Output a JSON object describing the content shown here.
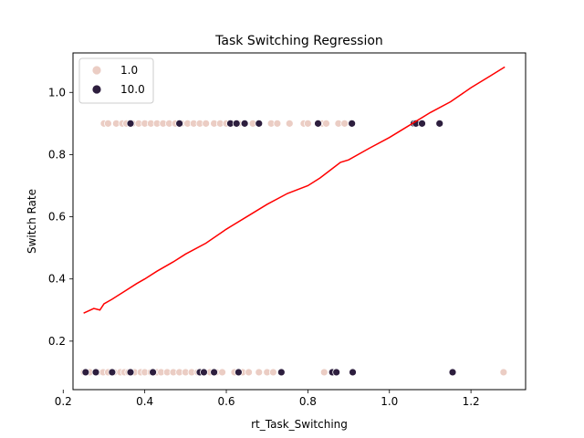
{
  "chart_data": {
    "type": "scatter",
    "title": "Task Switching Regression",
    "xlabel": "rt_Task_Switching",
    "ylabel": "Switch Rate",
    "xlim": [
      0.224,
      1.334
    ],
    "ylim": [
      0.044,
      1.127
    ],
    "xticks": [
      0.2,
      0.4,
      0.6,
      0.8,
      1.0,
      1.2
    ],
    "yticks": [
      0.2,
      0.4,
      0.6,
      0.8,
      1.0
    ],
    "grid": false,
    "legend": {
      "position": "upper-left",
      "title": ""
    },
    "series": [
      {
        "name": "1.0",
        "color": "#ebcdc4",
        "points": [
          [
            0.251,
            0.1
          ],
          [
            0.265,
            0.1
          ],
          [
            0.285,
            0.1
          ],
          [
            0.298,
            0.1
          ],
          [
            0.31,
            0.1
          ],
          [
            0.325,
            0.1
          ],
          [
            0.34,
            0.1
          ],
          [
            0.35,
            0.1
          ],
          [
            0.36,
            0.1
          ],
          [
            0.375,
            0.1
          ],
          [
            0.39,
            0.1
          ],
          [
            0.4,
            0.1
          ],
          [
            0.415,
            0.1
          ],
          [
            0.43,
            0.1
          ],
          [
            0.44,
            0.1
          ],
          [
            0.455,
            0.1
          ],
          [
            0.47,
            0.1
          ],
          [
            0.485,
            0.1
          ],
          [
            0.5,
            0.1
          ],
          [
            0.515,
            0.1
          ],
          [
            0.53,
            0.1
          ],
          [
            0.545,
            0.1
          ],
          [
            0.56,
            0.1
          ],
          [
            0.575,
            0.1
          ],
          [
            0.59,
            0.1
          ],
          [
            0.62,
            0.1
          ],
          [
            0.64,
            0.1
          ],
          [
            0.655,
            0.1
          ],
          [
            0.68,
            0.1
          ],
          [
            0.7,
            0.1
          ],
          [
            0.715,
            0.1
          ],
          [
            0.84,
            0.1
          ],
          [
            0.87,
            0.1
          ],
          [
            1.28,
            0.1
          ],
          [
            0.3,
            0.9
          ],
          [
            0.31,
            0.9
          ],
          [
            0.33,
            0.9
          ],
          [
            0.345,
            0.9
          ],
          [
            0.355,
            0.9
          ],
          [
            0.37,
            0.9
          ],
          [
            0.385,
            0.9
          ],
          [
            0.4,
            0.9
          ],
          [
            0.415,
            0.9
          ],
          [
            0.43,
            0.9
          ],
          [
            0.445,
            0.9
          ],
          [
            0.46,
            0.9
          ],
          [
            0.475,
            0.9
          ],
          [
            0.49,
            0.9
          ],
          [
            0.505,
            0.9
          ],
          [
            0.52,
            0.9
          ],
          [
            0.535,
            0.9
          ],
          [
            0.55,
            0.9
          ],
          [
            0.57,
            0.9
          ],
          [
            0.585,
            0.9
          ],
          [
            0.6,
            0.9
          ],
          [
            0.615,
            0.9
          ],
          [
            0.63,
            0.9
          ],
          [
            0.645,
            0.9
          ],
          [
            0.665,
            0.9
          ],
          [
            0.71,
            0.9
          ],
          [
            0.725,
            0.9
          ],
          [
            0.755,
            0.9
          ],
          [
            0.79,
            0.9
          ],
          [
            0.8,
            0.9
          ],
          [
            0.835,
            0.9
          ],
          [
            0.845,
            0.9
          ],
          [
            0.875,
            0.9
          ],
          [
            0.89,
            0.9
          ],
          [
            1.07,
            0.9
          ]
        ]
      },
      {
        "name": "10.0",
        "color": "#2d1e3e",
        "points": [
          [
            0.255,
            0.1
          ],
          [
            0.28,
            0.1
          ],
          [
            0.32,
            0.1
          ],
          [
            0.365,
            0.1
          ],
          [
            0.42,
            0.1
          ],
          [
            0.535,
            0.1
          ],
          [
            0.545,
            0.1
          ],
          [
            0.57,
            0.1
          ],
          [
            0.63,
            0.1
          ],
          [
            0.735,
            0.1
          ],
          [
            0.86,
            0.1
          ],
          [
            0.87,
            0.1
          ],
          [
            0.91,
            0.1
          ],
          [
            1.155,
            0.1
          ],
          [
            0.365,
            0.9
          ],
          [
            0.485,
            0.9
          ],
          [
            0.61,
            0.9
          ],
          [
            0.625,
            0.9
          ],
          [
            0.645,
            0.9
          ],
          [
            0.68,
            0.9
          ],
          [
            0.825,
            0.9
          ],
          [
            0.908,
            0.9
          ],
          [
            1.06,
            0.9
          ],
          [
            1.065,
            0.9
          ],
          [
            1.08,
            0.9
          ],
          [
            1.123,
            0.9
          ]
        ]
      }
    ],
    "regression_line": {
      "color": "#ff0000",
      "points": [
        [
          0.25,
          0.29
        ],
        [
          0.275,
          0.305
        ],
        [
          0.29,
          0.3
        ],
        [
          0.3,
          0.32
        ],
        [
          0.32,
          0.335
        ],
        [
          0.35,
          0.36
        ],
        [
          0.38,
          0.385
        ],
        [
          0.4,
          0.4
        ],
        [
          0.43,
          0.425
        ],
        [
          0.47,
          0.455
        ],
        [
          0.5,
          0.48
        ],
        [
          0.55,
          0.515
        ],
        [
          0.6,
          0.56
        ],
        [
          0.65,
          0.6
        ],
        [
          0.7,
          0.64
        ],
        [
          0.75,
          0.675
        ],
        [
          0.8,
          0.7
        ],
        [
          0.83,
          0.725
        ],
        [
          0.86,
          0.755
        ],
        [
          0.88,
          0.775
        ],
        [
          0.9,
          0.783
        ],
        [
          0.95,
          0.82
        ],
        [
          1.0,
          0.855
        ],
        [
          1.05,
          0.895
        ],
        [
          1.1,
          0.935
        ],
        [
          1.15,
          0.97
        ],
        [
          1.2,
          1.015
        ],
        [
          1.25,
          1.055
        ],
        [
          1.283,
          1.082
        ]
      ]
    }
  }
}
